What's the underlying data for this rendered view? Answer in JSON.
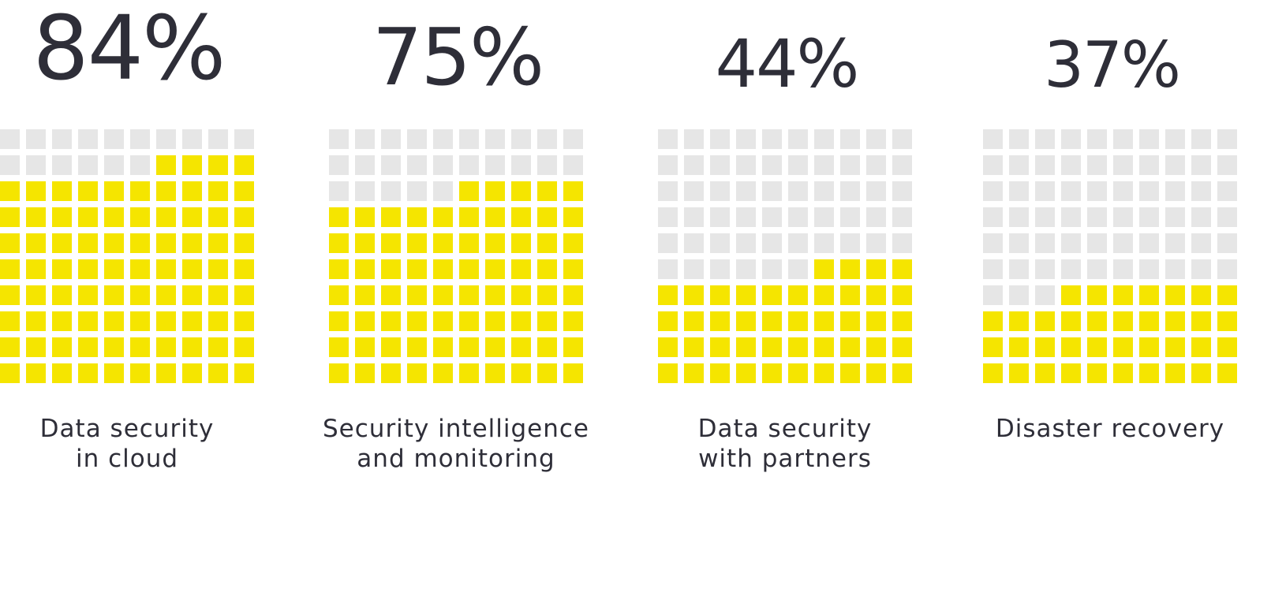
{
  "chart_data": [
    {
      "type": "waffle",
      "value": 84,
      "value_label": "84%",
      "label": [
        "Data security",
        "in cloud"
      ],
      "color": "#f5e500",
      "empty_color": "#e6e6e6"
    },
    {
      "type": "waffle",
      "value": 75,
      "value_label": "75%",
      "label": [
        "Security intelligence",
        "and monitoring"
      ],
      "color": "#f5e500",
      "empty_color": "#e6e6e6"
    },
    {
      "type": "waffle",
      "value": 44,
      "value_label": "44%",
      "label": [
        "Data security",
        "with partners"
      ],
      "color": "#f5e500",
      "empty_color": "#e6e6e6"
    },
    {
      "type": "waffle",
      "value": 37,
      "value_label": "37%",
      "label": [
        "Disaster recovery"
      ],
      "color": "#f5e500",
      "empty_color": "#e6e6e6"
    }
  ]
}
